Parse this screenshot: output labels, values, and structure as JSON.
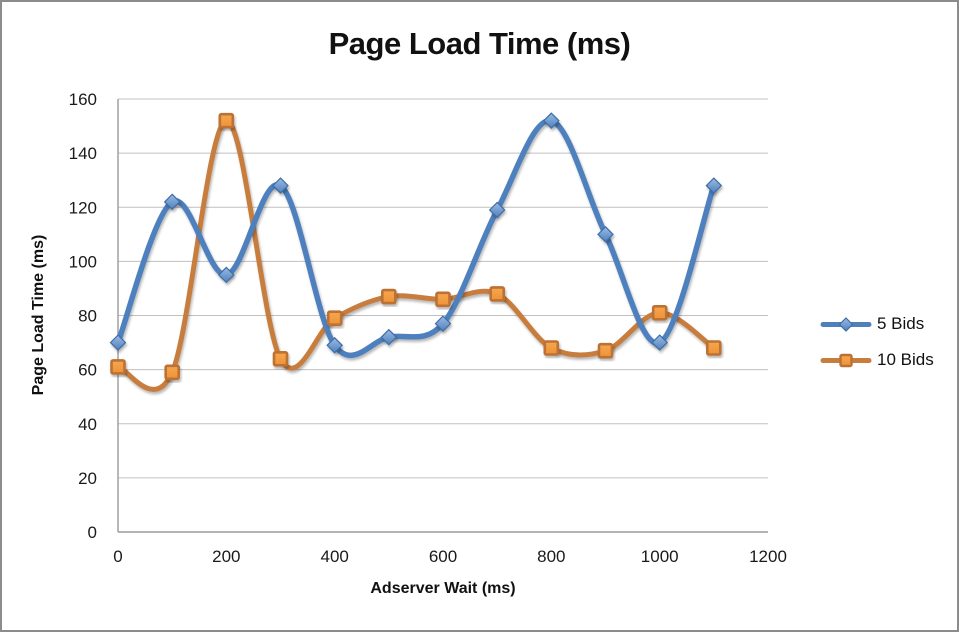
{
  "chart_data": {
    "type": "line",
    "title": "Page Load Time (ms)",
    "xlabel": "Adserver Wait (ms)",
    "ylabel": "Page Load Time (ms)",
    "x": [
      0,
      100,
      200,
      300,
      400,
      500,
      600,
      700,
      800,
      900,
      1000,
      1100
    ],
    "series": [
      {
        "name": "5 Bids",
        "marker": "diamond",
        "line_color": "#4d80bd",
        "marker_fill_light": "#9bbbe4",
        "marker_fill_dark": "#4f81bd",
        "marker_stroke": "#3d6ea5",
        "values": [
          70,
          122,
          95,
          128,
          69,
          72,
          77,
          119,
          152,
          110,
          70,
          128
        ]
      },
      {
        "name": "10 Bids",
        "marker": "square",
        "line_color": "#c77d3d",
        "marker_fill_light": "#f6a74f",
        "marker_fill_dark": "#ee9238",
        "marker_stroke": "#bc7134",
        "values": [
          61,
          59,
          152,
          64,
          79,
          87,
          86,
          88,
          68,
          67,
          81,
          68
        ]
      }
    ],
    "xlim": [
      0,
      1200
    ],
    "ylim": [
      0,
      160
    ],
    "x_ticks": [
      0,
      200,
      400,
      600,
      800,
      1000,
      1200
    ],
    "y_ticks": [
      0,
      20,
      40,
      60,
      80,
      100,
      120,
      140,
      160
    ],
    "grid": "horizontal",
    "legend_position": "right",
    "smooth_lines": true,
    "axis_color": "#9b9b9b",
    "gridline_color": "#c0c0c0",
    "text_color": "#1a1a1a",
    "background": "#ffffff",
    "frame_border_color": "#8c8c8c"
  }
}
